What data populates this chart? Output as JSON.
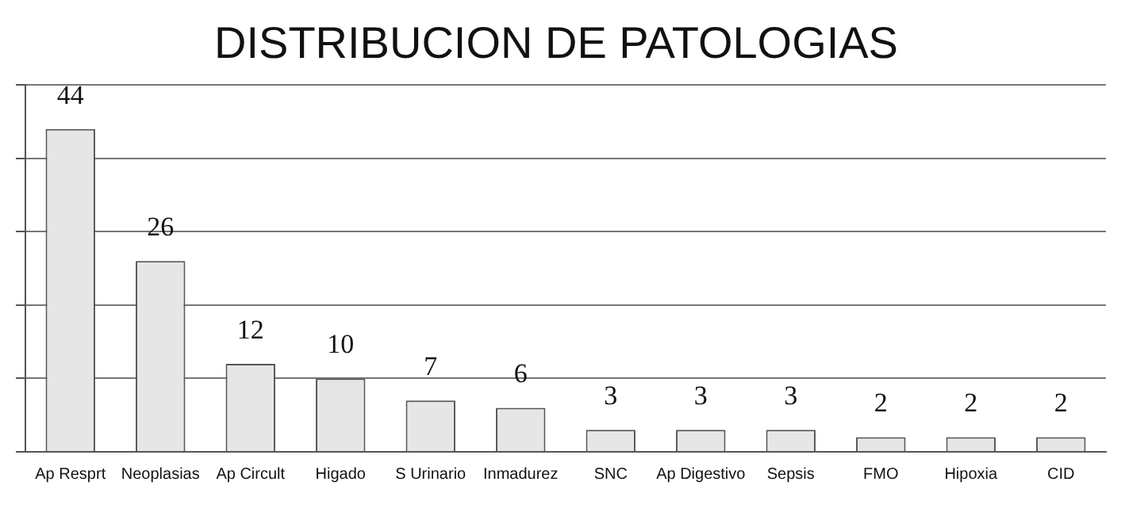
{
  "chart_data": {
    "type": "bar",
    "title": "DISTRIBUCION DE PATOLOGIAS",
    "categories": [
      "Ap Resprt",
      "Neoplasias",
      "Ap Circult",
      "Higado",
      "S Urinario",
      "Inmadurez",
      "SNC",
      "Ap Digestivo",
      "Sepsis",
      "FMO",
      "Hipoxia",
      "CID"
    ],
    "values": [
      44,
      26,
      12,
      10,
      7,
      6,
      3,
      3,
      3,
      2,
      2,
      2
    ],
    "color": "#e6e6e6",
    "ylim": [
      0,
      50
    ],
    "yticks": [
      {
        "value": 0,
        "label": null
      },
      {
        "value": 10,
        "label": null
      },
      {
        "value": 20,
        "label": null
      },
      {
        "value": 30,
        "label": null
      },
      {
        "value": 40,
        "label": null
      },
      {
        "value": 50,
        "label": null
      }
    ],
    "grid": "y",
    "data_labels": true,
    "legend": false
  }
}
